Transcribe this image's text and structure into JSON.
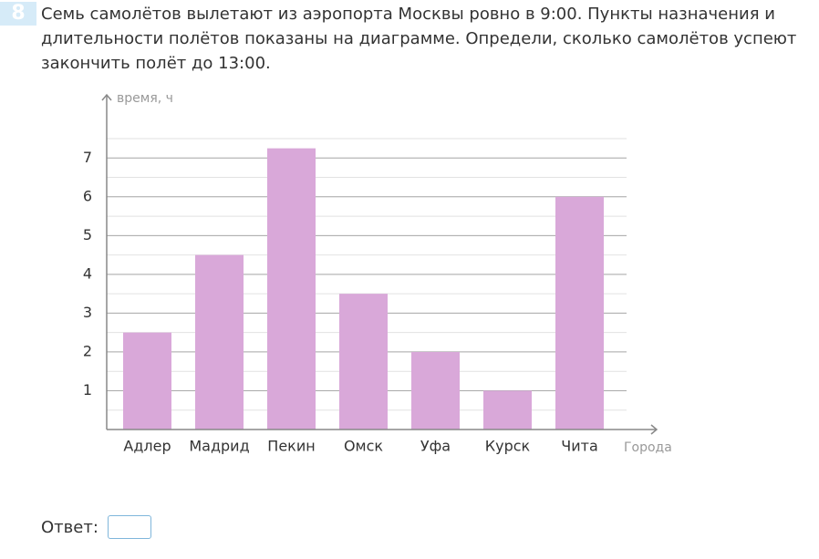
{
  "question": {
    "number": "8",
    "text": "Семь самолётов вылетают из аэропорта Москвы ровно в 9:00. Пункты назначения и длительности полётов показаны на диаграмме. Определи, сколько самолётов успеют закончить полёт до 13:00."
  },
  "chart_data": {
    "type": "bar",
    "y_label": "время, ч",
    "x_label": "Города",
    "categories": [
      "Адлер",
      "Мадрид",
      "Пекин",
      "Омск",
      "Уфа",
      "Курск",
      "Чита"
    ],
    "values": [
      2.5,
      4.5,
      7.25,
      3.5,
      2,
      1,
      6
    ],
    "color": "#d9a8d9",
    "ylim": [
      0,
      7.5
    ],
    "yticks": [
      1,
      2,
      3,
      4,
      5,
      6,
      7
    ],
    "grid": true
  },
  "answer": {
    "label": "Ответ:"
  }
}
